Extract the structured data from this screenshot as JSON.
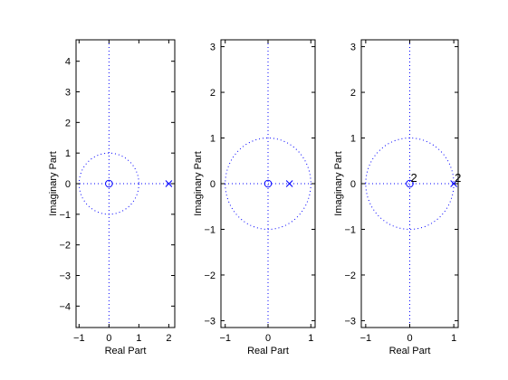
{
  "figure": {
    "background": "#ffffff",
    "axes_color": "#000000",
    "plot_color": "#0000ff"
  },
  "chart_data": [
    {
      "type": "scatter",
      "title": "",
      "xlabel": "Real Part",
      "ylabel": "Imaginary Part",
      "xlim": [
        -1.1,
        2.2
      ],
      "ylim": [
        -4.7,
        4.7
      ],
      "xticks": [
        -1,
        0,
        1,
        2
      ],
      "yticks": [
        -4,
        -3,
        -2,
        -1,
        0,
        1,
        2,
        3,
        4
      ],
      "grid": false,
      "unit_circle": true,
      "zeros": [
        {
          "re": 0,
          "im": 0
        }
      ],
      "poles": [
        {
          "re": 2,
          "im": 0
        }
      ],
      "multiplicity": []
    },
    {
      "type": "scatter",
      "title": "",
      "xlabel": "Real Part",
      "ylabel": "Imaginary Part",
      "xlim": [
        -1.1,
        1.1
      ],
      "ylim": [
        -3.15,
        3.15
      ],
      "xticks": [
        -1,
        0,
        1
      ],
      "yticks": [
        -3,
        -2,
        -1,
        0,
        1,
        2,
        3
      ],
      "grid": false,
      "unit_circle": true,
      "zeros": [
        {
          "re": 0,
          "im": 0
        }
      ],
      "poles": [
        {
          "re": 0.5,
          "im": 0
        }
      ],
      "multiplicity": []
    },
    {
      "type": "scatter",
      "title": "",
      "xlabel": "Real Part",
      "ylabel": "Imaginary Part",
      "xlim": [
        -1.1,
        1.1
      ],
      "ylim": [
        -3.15,
        3.15
      ],
      "xticks": [
        -1,
        0,
        1
      ],
      "yticks": [
        -3,
        -2,
        -1,
        0,
        1,
        2,
        3
      ],
      "grid": false,
      "unit_circle": true,
      "zeros": [
        {
          "re": 0,
          "im": 0
        }
      ],
      "poles": [
        {
          "re": 1,
          "im": 0
        }
      ],
      "multiplicity": [
        {
          "re": 0,
          "im": 0,
          "text": "2"
        },
        {
          "re": 1,
          "im": 0,
          "text": "2"
        }
      ]
    }
  ]
}
